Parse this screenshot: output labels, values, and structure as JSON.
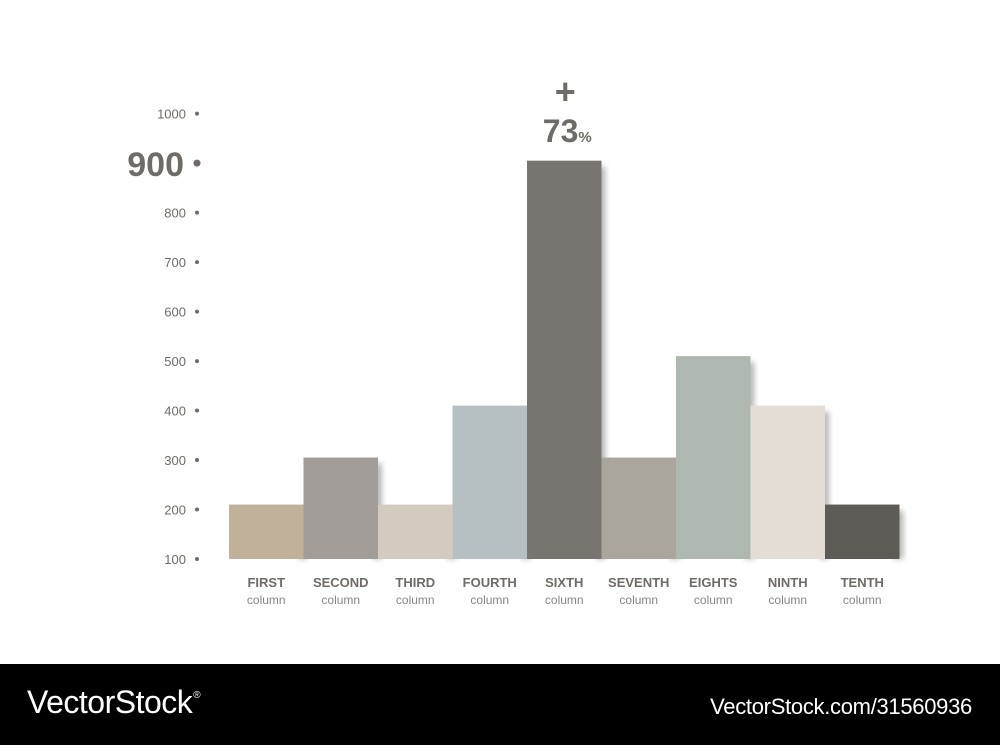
{
  "chart_data": {
    "type": "bar",
    "categories": [
      {
        "name": "FIRST",
        "sub": "column"
      },
      {
        "name": "SECOND",
        "sub": "column"
      },
      {
        "name": "THIRD",
        "sub": "column"
      },
      {
        "name": "FOURTH",
        "sub": "column"
      },
      {
        "name": "SIXTH",
        "sub": "column"
      },
      {
        "name": "SEVENTH",
        "sub": "column"
      },
      {
        "name": "EIGHTS",
        "sub": "column"
      },
      {
        "name": "NINTH",
        "sub": "column"
      },
      {
        "name": "TENTH",
        "sub": "column"
      }
    ],
    "values": [
      210,
      305,
      210,
      410,
      905,
      305,
      510,
      410,
      210
    ],
    "colors": [
      "#c2b19a",
      "#a29d98",
      "#d3cbc0",
      "#b6c0c3",
      "#787470",
      "#aaa69e",
      "#aeb8b0",
      "#e3ddd5",
      "#5f5b56"
    ],
    "yticks": [
      100,
      200,
      300,
      400,
      500,
      600,
      700,
      800,
      900,
      1000
    ],
    "highlight_tick": 900,
    "ylim": [
      100,
      1000
    ],
    "annotation": {
      "bar_index": 4,
      "sign": "+",
      "value": "73",
      "unit": "%"
    },
    "title": "",
    "xlabel": "",
    "ylabel": ""
  },
  "footer": {
    "brand": "VectorStock",
    "brand_mark": "®",
    "stock_id": "VectorStock.com/31560936"
  }
}
